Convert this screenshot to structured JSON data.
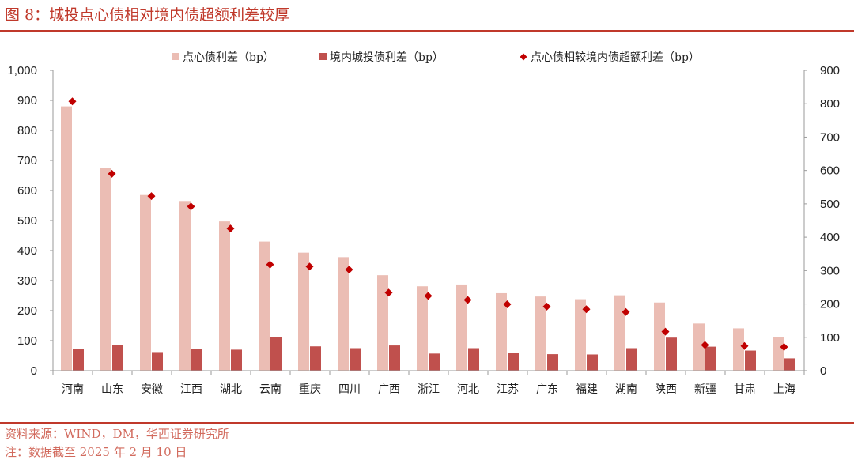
{
  "header": {
    "title": "图 8：城投点心债相对境内债超额利差较厚"
  },
  "footer": {
    "source": "资料来源：WIND，DM，华西证券研究所",
    "date_note": "注：数据截至 2025 年 2 月 10 日"
  },
  "colors": {
    "accent": "#c0392b",
    "dimsum_bar": "#ebbdb4",
    "onshore_bar": "#c0504d",
    "excess_marker": "#c00000"
  },
  "chart_data": {
    "type": "bar",
    "categories": [
      "河南",
      "山东",
      "安徽",
      "江西",
      "湖北",
      "云南",
      "重庆",
      "四川",
      "广西",
      "浙江",
      "河北",
      "江苏",
      "广东",
      "福建",
      "湖南",
      "陕西",
      "新疆",
      "甘肃",
      "上海"
    ],
    "series": [
      {
        "name": "点心债利差（bp）",
        "kind": "bar",
        "axis": "left",
        "values": [
          880,
          675,
          585,
          565,
          497,
          430,
          393,
          378,
          318,
          281,
          287,
          258,
          247,
          238,
          251,
          227,
          157,
          141,
          112
        ]
      },
      {
        "name": "境内城投债利差（bp）",
        "kind": "bar",
        "axis": "left",
        "values": [
          72,
          85,
          62,
          72,
          70,
          112,
          81,
          75,
          84,
          57,
          75,
          59,
          55,
          54,
          75,
          110,
          80,
          67,
          41
        ]
      },
      {
        "name": "点心债相较境内债超额利差（bp）",
        "kind": "scatter",
        "axis": "right",
        "values": [
          807,
          590,
          523,
          492,
          426,
          318,
          312,
          303,
          234,
          224,
          212,
          199,
          192,
          184,
          176,
          117,
          77,
          74,
          71
        ]
      }
    ],
    "y_left": {
      "min": 0,
      "max": 1000,
      "step": 100,
      "tick_labels": [
        "0",
        "100",
        "200",
        "300",
        "400",
        "500",
        "600",
        "700",
        "800",
        "900",
        "1,000"
      ]
    },
    "y_right": {
      "min": 0,
      "max": 900,
      "step": 100,
      "tick_labels": [
        "0",
        "100",
        "200",
        "300",
        "400",
        "500",
        "600",
        "700",
        "800",
        "900"
      ]
    },
    "legend_position": "top",
    "grid": false
  }
}
